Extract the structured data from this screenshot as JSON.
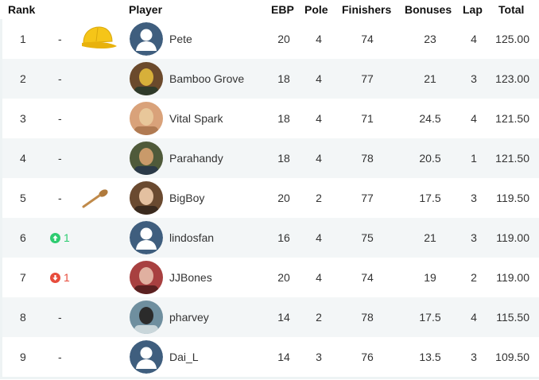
{
  "columns": {
    "rank": "Rank",
    "player": "Player",
    "ebp": "EBP",
    "pole": "Pole",
    "finishers": "Finishers",
    "bonuses": "Bonuses",
    "lap": "Lap",
    "total": "Total"
  },
  "colors": {
    "up": "#2ecc71",
    "down": "#e74c3c",
    "row_alt": "#f3f6f7",
    "avatar_default": "#3f5e7e"
  },
  "rows": [
    {
      "rank": "1",
      "movement": "-",
      "trophy": "yellow-cap-icon",
      "avatar": "default-avatar-icon",
      "player": "Pete",
      "ebp": "20",
      "pole": "4",
      "finishers": "74",
      "bonuses": "23",
      "lap": "4",
      "total": "125.00"
    },
    {
      "rank": "2",
      "movement": "-",
      "avatar": "photo-avatar",
      "player": "Bamboo Grove",
      "ebp": "18",
      "pole": "4",
      "finishers": "77",
      "bonuses": "21",
      "lap": "3",
      "total": "123.00"
    },
    {
      "rank": "3",
      "movement": "-",
      "avatar": "photo-avatar",
      "player": "Vital Spark",
      "ebp": "18",
      "pole": "4",
      "finishers": "71",
      "bonuses": "24.5",
      "lap": "4",
      "total": "121.50"
    },
    {
      "rank": "4",
      "movement": "-",
      "avatar": "photo-avatar",
      "player": "Parahandy",
      "ebp": "18",
      "pole": "4",
      "finishers": "78",
      "bonuses": "20.5",
      "lap": "1",
      "total": "121.50"
    },
    {
      "rank": "5",
      "movement": "-",
      "trophy": "wooden-spoon-icon",
      "avatar": "photo-avatar",
      "player": "BigBoy",
      "ebp": "20",
      "pole": "2",
      "finishers": "77",
      "bonuses": "17.5",
      "lap": "3",
      "total": "119.50"
    },
    {
      "rank": "6",
      "movement": "1",
      "movement_dir": "up",
      "avatar": "default-avatar-icon",
      "player": "lindosfan",
      "ebp": "16",
      "pole": "4",
      "finishers": "75",
      "bonuses": "21",
      "lap": "3",
      "total": "119.00"
    },
    {
      "rank": "7",
      "movement": "1",
      "movement_dir": "down",
      "avatar": "photo-avatar",
      "player": "JJBones",
      "ebp": "20",
      "pole": "4",
      "finishers": "74",
      "bonuses": "19",
      "lap": "2",
      "total": "119.00"
    },
    {
      "rank": "8",
      "movement": "-",
      "avatar": "photo-avatar",
      "player": "pharvey",
      "ebp": "14",
      "pole": "2",
      "finishers": "78",
      "bonuses": "17.5",
      "lap": "4",
      "total": "115.50"
    },
    {
      "rank": "9",
      "movement": "-",
      "avatar": "default-avatar-icon",
      "player": "Dai_L",
      "ebp": "14",
      "pole": "3",
      "finishers": "76",
      "bonuses": "13.5",
      "lap": "3",
      "total": "109.50"
    }
  ]
}
